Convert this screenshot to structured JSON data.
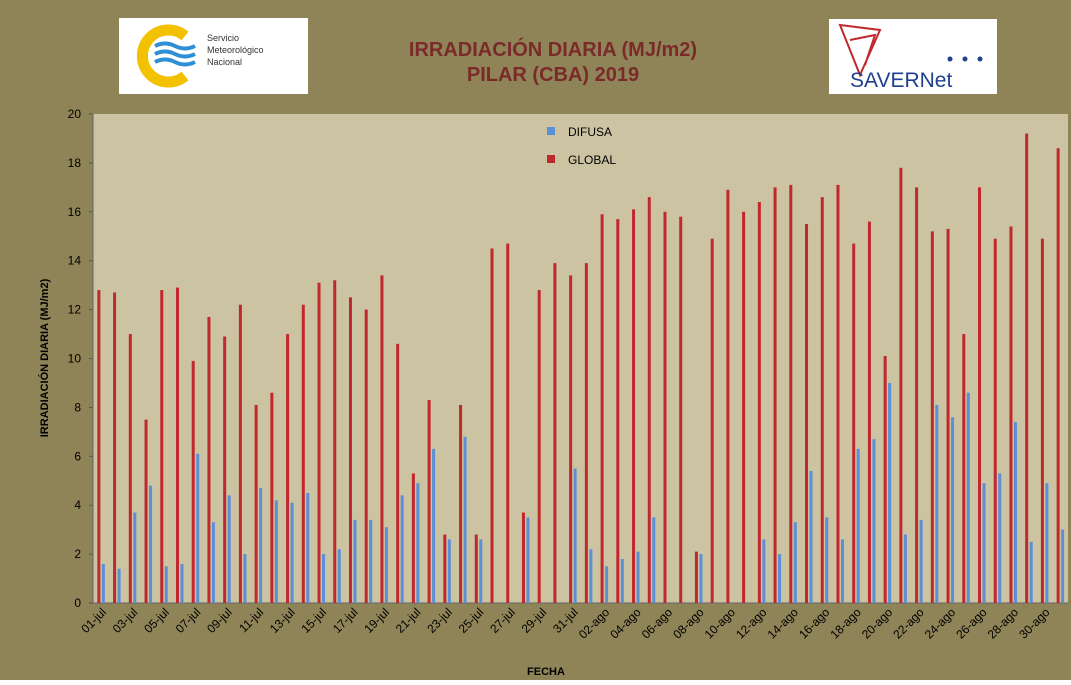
{
  "logos": {
    "left": [
      "Servicio",
      "Meteorológico",
      "Nacional"
    ],
    "right": "SAVERNet"
  },
  "chart_data": {
    "type": "bar",
    "title": [
      "IRRADIACIÓN  DIARIA  (MJ/m2)",
      "PILAR (CBA) 2019"
    ],
    "xlabel": "FECHA",
    "ylabel": "IRRADIACIÓN DIARIA (MJ/m2)",
    "categories": [
      "01-jul",
      null,
      "03-jul",
      null,
      "05-jul",
      null,
      "07-jul",
      null,
      "09-jul",
      null,
      "11-jul",
      null,
      "13-jul",
      null,
      "15-jul",
      null,
      "17-jul",
      null,
      "19-jul",
      null,
      "21-jul",
      null,
      "23-jul",
      null,
      "25-jul",
      null,
      "27-jul",
      null,
      "29-jul",
      null,
      "31-jul",
      null,
      "02-ago",
      null,
      "04-ago",
      null,
      "06-ago",
      null,
      "08-ago",
      null,
      "10-ago",
      null,
      "12-ago",
      null,
      "14-ago",
      null,
      "16-ago",
      null,
      "18-ago",
      null,
      "20-ago",
      null,
      "22-ago",
      null,
      "24-ago",
      null,
      "26-ago",
      null,
      "28-ago",
      null,
      "30-ago",
      null
    ],
    "series": [
      {
        "name": "DIFUSA",
        "color": "#5b8fd6",
        "values": [
          1.6,
          1.4,
          3.7,
          4.8,
          1.5,
          1.6,
          6.1,
          3.3,
          4.4,
          2.0,
          4.7,
          4.2,
          4.1,
          4.5,
          2.0,
          2.2,
          3.4,
          3.4,
          3.1,
          4.4,
          4.9,
          6.3,
          2.6,
          6.8,
          2.6,
          null,
          null,
          3.5,
          null,
          null,
          5.5,
          2.2,
          1.5,
          1.8,
          2.1,
          3.5,
          null,
          null,
          2.0,
          null,
          null,
          null,
          2.6,
          2.0,
          3.3,
          5.4,
          3.5,
          2.6,
          6.3,
          6.7,
          9.0,
          2.8,
          3.4,
          8.1,
          7.6,
          8.6,
          4.9,
          5.3,
          7.4,
          2.5,
          4.9,
          3.0
        ]
      },
      {
        "name": "GLOBAL",
        "color": "#c0282d",
        "values": [
          12.8,
          12.7,
          11.0,
          7.5,
          12.8,
          12.9,
          9.9,
          11.7,
          10.9,
          12.2,
          8.1,
          8.6,
          11.0,
          12.2,
          13.1,
          13.2,
          12.5,
          12.0,
          13.4,
          10.6,
          5.3,
          8.3,
          2.8,
          8.1,
          2.8,
          14.5,
          14.7,
          3.7,
          12.8,
          13.9,
          13.4,
          13.9,
          15.9,
          15.7,
          16.1,
          16.6,
          16.0,
          15.8,
          2.1,
          14.9,
          16.9,
          16.0,
          16.4,
          17.0,
          17.1,
          15.5,
          16.6,
          17.1,
          14.7,
          15.6,
          10.1,
          17.8,
          17.0,
          15.2,
          15.3,
          11.0,
          17.0,
          14.9,
          15.4,
          19.2,
          14.9,
          18.6
        ]
      }
    ],
    "ylim": [
      0,
      20
    ],
    "yticks": [
      0,
      2,
      4,
      6,
      8,
      10,
      12,
      14,
      16,
      18,
      20
    ],
    "grid": false
  }
}
